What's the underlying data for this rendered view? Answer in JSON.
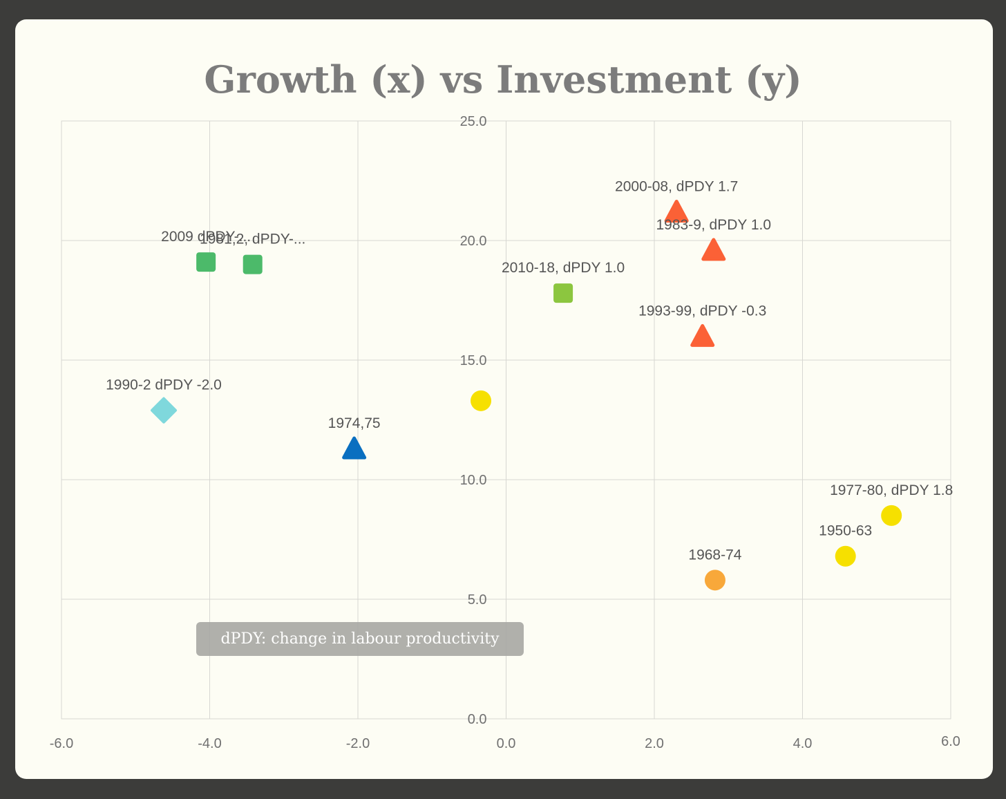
{
  "chart_data": {
    "type": "scatter",
    "title": "Growth (x) vs Investment (y)",
    "xlabel": "",
    "ylabel": "",
    "xlim": [
      -6.0,
      6.0
    ],
    "ylim": [
      0.0,
      25.0
    ],
    "x_ticks": [
      "-6.0",
      "-4.0",
      "-2.0",
      "0.0",
      "2.0",
      "4.0",
      "6.0"
    ],
    "y_ticks": [
      "0.0",
      "5.0",
      "10.0",
      "15.0",
      "20.0",
      "25.0"
    ],
    "grid": true,
    "legend": "none",
    "points": [
      {
        "label": "2000-08, dPDY 1.7",
        "x": 2.3,
        "y": 21.2,
        "shape": "triangle",
        "color": "#fb6136"
      },
      {
        "label": "1983-9, dPDY 1.0",
        "x": 2.8,
        "y": 19.6,
        "shape": "triangle",
        "color": "#fb6136"
      },
      {
        "label": "1993-99, dPDY -0.3",
        "x": 2.65,
        "y": 16.0,
        "shape": "triangle",
        "color": "#fb6136"
      },
      {
        "label": "2010-18, dPDY 1.0",
        "x": 0.77,
        "y": 17.8,
        "shape": "square",
        "color": "#8cc63f"
      },
      {
        "label": "2009 dPDY-...",
        "x": -4.05,
        "y": 19.1,
        "shape": "square",
        "color": "#4cba6a"
      },
      {
        "label": "1981,2, dPDY-...",
        "x": -3.42,
        "y": 19.0,
        "shape": "square",
        "color": "#4cba6a"
      },
      {
        "label": "1990-2 dPDY -2.0",
        "x": -4.62,
        "y": 12.9,
        "shape": "diamond",
        "color": "#7fd8dc"
      },
      {
        "label": "1974,75",
        "x": -2.05,
        "y": 11.3,
        "shape": "triangle",
        "color": "#0a6fc0"
      },
      {
        "label": "",
        "x": -0.34,
        "y": 13.3,
        "shape": "circle",
        "color": "#f6e000"
      },
      {
        "label": "1977-80, dPDY 1.8",
        "x": 5.2,
        "y": 8.5,
        "shape": "circle",
        "color": "#f6e000"
      },
      {
        "label": "1950-63",
        "x": 4.58,
        "y": 6.8,
        "shape": "circle",
        "color": "#f6e000"
      },
      {
        "label": "1968-74",
        "x": 2.82,
        "y": 5.8,
        "shape": "circle",
        "color": "#f8a83a"
      }
    ],
    "annotation": "dPDY: change in labour productivity"
  },
  "colors": {
    "background": "#fdfdf4",
    "frame": "#3c3c3a",
    "grid": "#d7d7d2"
  }
}
